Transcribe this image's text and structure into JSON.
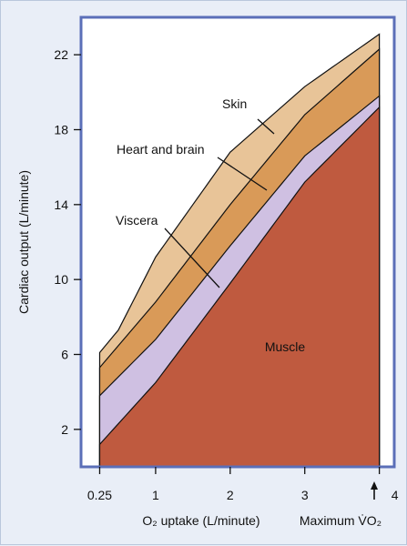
{
  "chart_data": {
    "type": "area",
    "stacked": true,
    "xlabel": "O₂ uptake (L/minute)",
    "ylabel": "Cardiac output (L/minute)",
    "xlim": [
      0.0,
      4.2
    ],
    "ylim": [
      0,
      24
    ],
    "x_ticks": [
      0.25,
      1,
      2,
      3,
      4
    ],
    "x_tick_labels": [
      "0.25",
      "1",
      "2",
      "3",
      "4"
    ],
    "y_ticks": [
      2,
      6,
      10,
      14,
      18,
      22
    ],
    "y_tick_labels": [
      "2",
      "6",
      "10",
      "14",
      "18",
      "22"
    ],
    "x_end_label": "Maximum V̇O₂",
    "x_end_value": 4,
    "grid": false,
    "legend": "none",
    "series": [
      {
        "name": "Muscle",
        "color": "#bf5a3f",
        "points": [
          [
            0.25,
            1.2
          ],
          [
            1.0,
            4.5
          ],
          [
            2.0,
            9.8
          ],
          [
            3.0,
            15.2
          ],
          [
            4.0,
            19.2
          ]
        ]
      },
      {
        "name": "Viscera",
        "color": "#cfc0e2",
        "points": [
          [
            0.25,
            3.8
          ],
          [
            1.0,
            6.8
          ],
          [
            2.0,
            11.8
          ],
          [
            3.0,
            16.6
          ],
          [
            4.0,
            19.8
          ]
        ]
      },
      {
        "name": "Heart and brain",
        "color": "#d99a58",
        "points": [
          [
            0.25,
            5.3
          ],
          [
            1.0,
            8.8
          ],
          [
            2.0,
            14.0
          ],
          [
            3.0,
            18.8
          ],
          [
            4.0,
            22.3
          ]
        ]
      },
      {
        "name": "Skin",
        "color": "#e8c498",
        "points": [
          [
            0.25,
            6.1
          ],
          [
            0.5,
            7.3
          ],
          [
            1.0,
            11.2
          ],
          [
            2.0,
            16.8
          ],
          [
            3.0,
            20.3
          ],
          [
            4.0,
            23.1
          ]
        ]
      }
    ],
    "annotations": [
      {
        "text": "Skin",
        "series": "Skin"
      },
      {
        "text": "Heart and brain",
        "series": "Heart and brain"
      },
      {
        "text": "Viscera",
        "series": "Viscera"
      },
      {
        "text": "Muscle",
        "series": "Muscle"
      }
    ],
    "colors": {
      "frame": "#5b6fb8",
      "background": "#ffffff",
      "page": "#e9eef7"
    }
  }
}
